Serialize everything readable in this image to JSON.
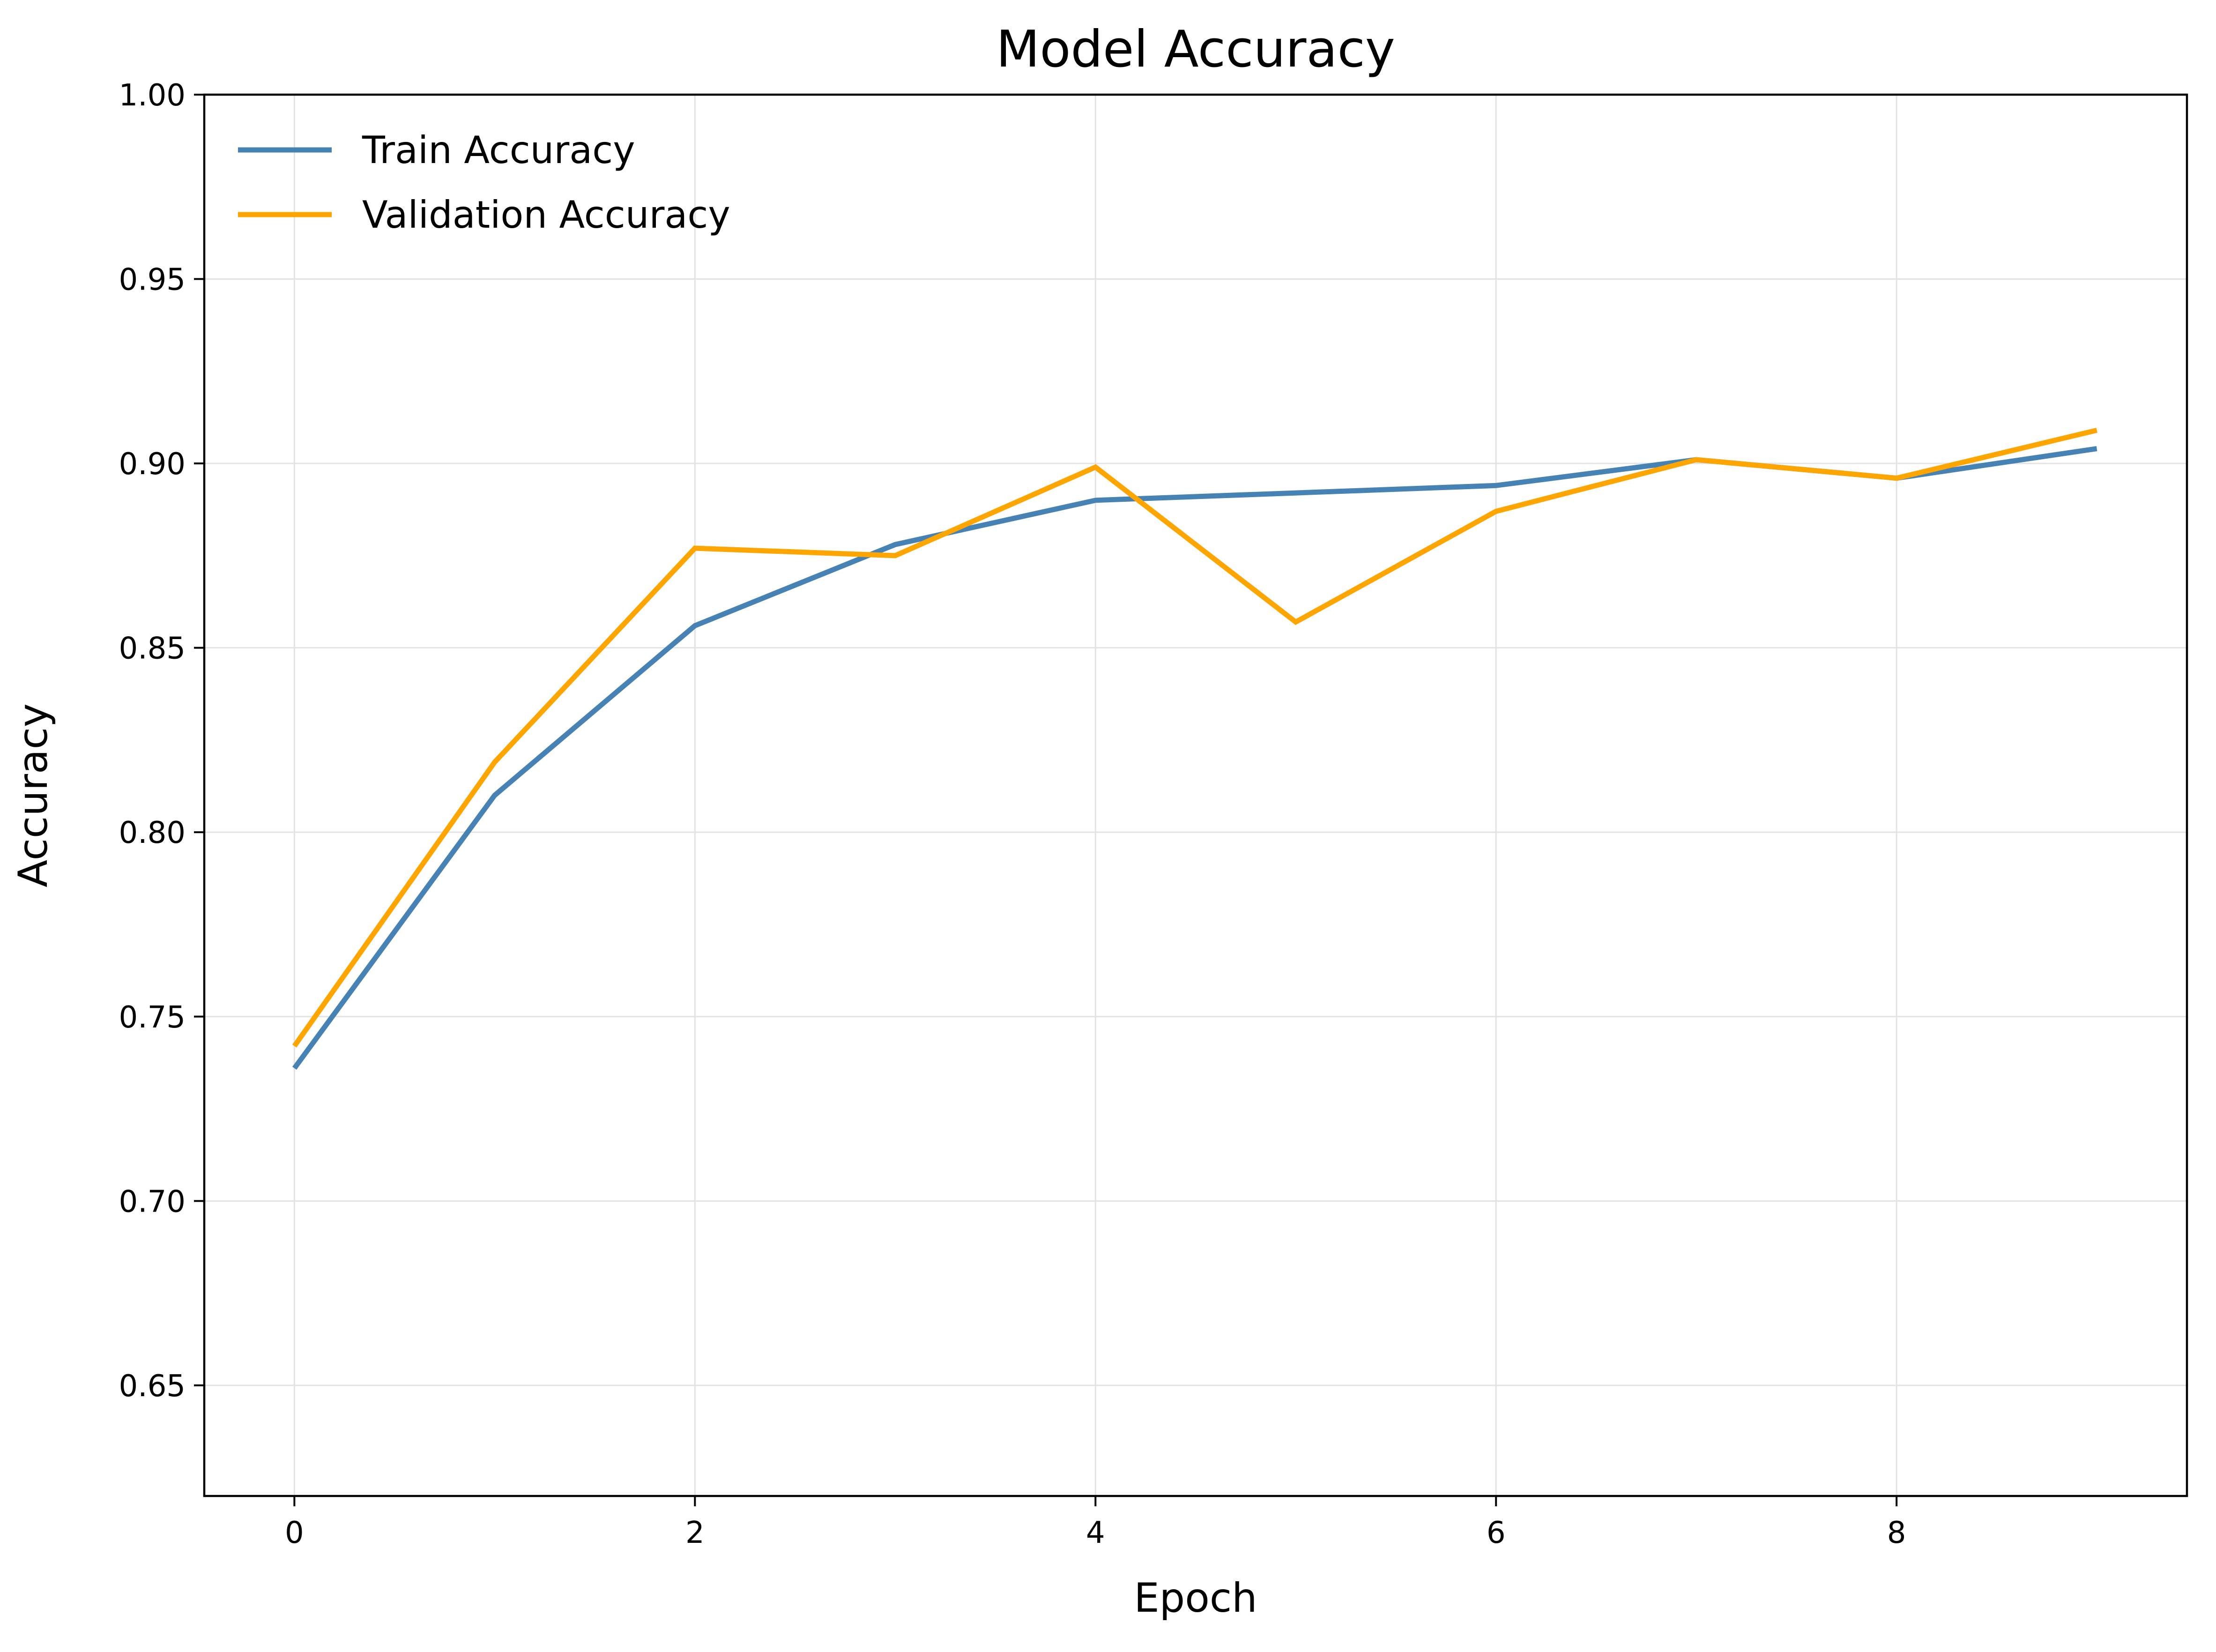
{
  "chart_data": {
    "type": "line",
    "title": "Model Accuracy",
    "xlabel": "Epoch",
    "ylabel": "Accuracy",
    "x": [
      0,
      1,
      2,
      3,
      4,
      5,
      6,
      7,
      8,
      9
    ],
    "xlim": [
      -0.45,
      9.45
    ],
    "ylim": [
      0.62,
      1.0
    ],
    "xticks": [
      0,
      2,
      4,
      6,
      8
    ],
    "xtick_labels": [
      "0",
      "2",
      "4",
      "6",
      "8"
    ],
    "yticks": [
      0.65,
      0.7,
      0.75,
      0.8,
      0.85,
      0.9,
      0.95,
      1.0
    ],
    "ytick_labels": [
      "0.65",
      "0.70",
      "0.75",
      "0.80",
      "0.85",
      "0.90",
      "0.95",
      "1.00"
    ],
    "grid": true,
    "legend_position": "top-left",
    "series": [
      {
        "name": "Train Accuracy",
        "color": "#4682b4",
        "values": [
          0.736,
          0.81,
          0.856,
          0.878,
          0.89,
          0.892,
          0.894,
          0.901,
          0.896,
          0.904
        ]
      },
      {
        "name": "Validation Accuracy",
        "color": "#ffa500",
        "values": [
          0.742,
          0.819,
          0.877,
          0.875,
          0.899,
          0.857,
          0.887,
          0.901,
          0.896,
          0.909
        ]
      }
    ]
  }
}
